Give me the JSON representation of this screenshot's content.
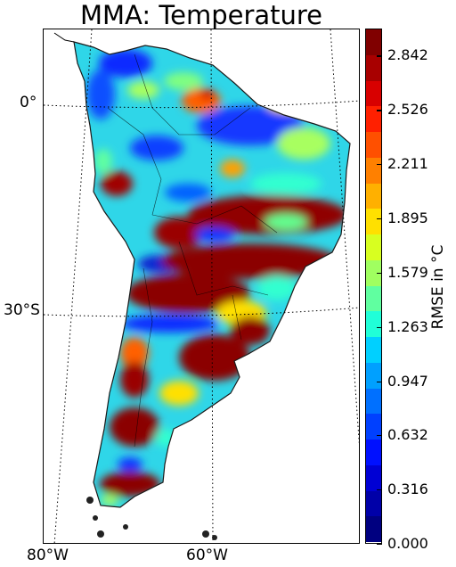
{
  "title": "MMA: Temperature",
  "lat_labels": [
    "0°",
    "30°S"
  ],
  "lon_labels": [
    "80°W",
    "60°W"
  ],
  "colorbar": {
    "label": "RMSE in °C",
    "tick_labels": [
      "2.842",
      "2.526",
      "2.211",
      "1.895",
      "1.579",
      "1.263",
      "0.947",
      "0.632",
      "0.316",
      "0.000"
    ],
    "min": 0.0,
    "max": 3.0,
    "colors": [
      "#000080",
      "#0000a8",
      "#0000d4",
      "#0010ff",
      "#0040ff",
      "#0070ff",
      "#00a0ff",
      "#00d0ff",
      "#20ffd8",
      "#60ffa0",
      "#a0ff60",
      "#d8ff20",
      "#ffe000",
      "#ffb000",
      "#ff8000",
      "#ff5000",
      "#ff2000",
      "#d80000",
      "#a80000",
      "#800000"
    ]
  },
  "map": {
    "colors": {
      "land_low": "#1430ff",
      "land_mid": "#20c8f0",
      "land_high": "#8b0000",
      "ocean": "#ffffff"
    }
  }
}
